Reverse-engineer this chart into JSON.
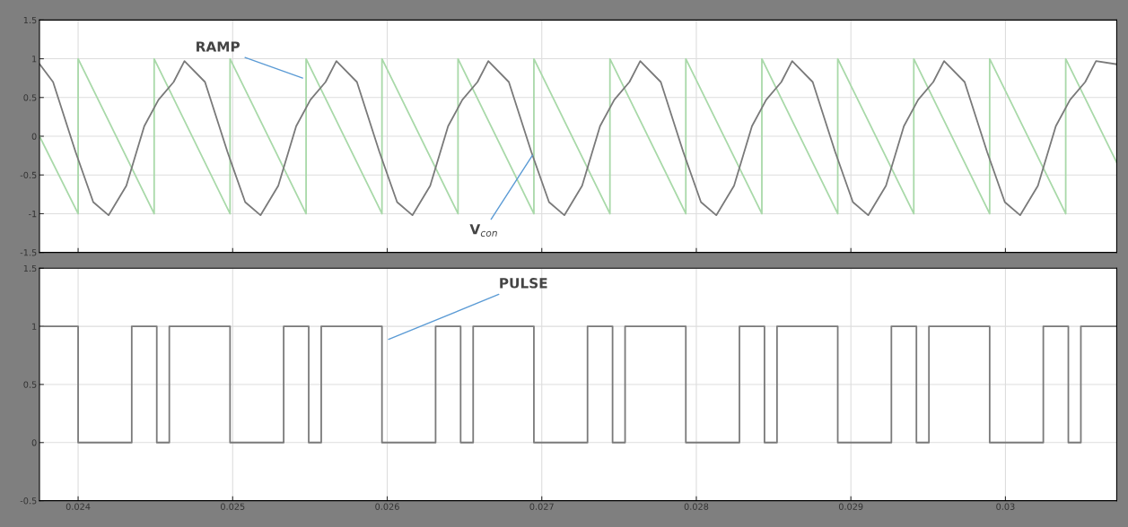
{
  "chart_data": [
    {
      "type": "line",
      "xlim": [
        0.02375,
        0.03072
      ],
      "ylim": [
        -1.5,
        1.5
      ],
      "xticks": [
        0.024,
        0.025,
        0.026,
        0.027,
        0.028,
        0.029,
        0.03
      ],
      "yticks": [
        -1.5,
        -1,
        -0.5,
        0,
        0.5,
        1,
        1.5
      ],
      "grid": true,
      "tick_labels": "y",
      "marker": "none",
      "line_style": "solid",
      "series": [
        {
          "color": "#a9d9a9",
          "x": [
            0.02375,
            0.024,
            0.024,
            0.024492,
            0.024492,
            0.024983,
            0.024983,
            0.025475,
            0.025475,
            0.025966,
            0.025966,
            0.026458,
            0.026458,
            0.026949,
            0.026949,
            0.027441,
            0.027441,
            0.027932,
            0.027932,
            0.028424,
            0.028424,
            0.028915,
            0.028915,
            0.029407,
            0.029407,
            0.029898,
            0.029898,
            0.03039,
            0.03039,
            0.03072
          ],
          "values": [
            0,
            -1,
            1,
            -1,
            1,
            -1,
            1,
            -1,
            1,
            -1,
            1,
            -1,
            1,
            -1,
            1,
            -1,
            1,
            -1,
            1,
            -1,
            1,
            -1,
            1,
            -1,
            1,
            -1,
            1,
            -1,
            1,
            -0.34
          ]
        },
        {
          "color": "#7a7a7a",
          "x": [
            0.023751,
            0.023838,
            0.023983,
            0.024098,
            0.024197,
            0.024312,
            0.024428,
            0.02452,
            0.024618,
            0.024688,
            0.024821,
            0.024966,
            0.025081,
            0.02518,
            0.025295,
            0.025411,
            0.025503,
            0.025601,
            0.025671,
            0.025804,
            0.025949,
            0.026064,
            0.026163,
            0.026278,
            0.026394,
            0.026486,
            0.026584,
            0.026654,
            0.026787,
            0.026932,
            0.027047,
            0.027146,
            0.027261,
            0.027377,
            0.027469,
            0.027567,
            0.027637,
            0.02777,
            0.027915,
            0.02803,
            0.028129,
            0.028244,
            0.02836,
            0.028452,
            0.02855,
            0.02862,
            0.028753,
            0.028898,
            0.029013,
            0.029112,
            0.029227,
            0.029343,
            0.029435,
            0.029533,
            0.029603,
            0.029736,
            0.029881,
            0.029996,
            0.030095,
            0.03021,
            0.030326,
            0.030418,
            0.030516,
            0.030586,
            0.030717
          ],
          "values": [
            0.93,
            0.7,
            -0.2,
            -0.85,
            -1.02,
            -0.64,
            0.13,
            0.47,
            0.7,
            0.97,
            0.7,
            -0.2,
            -0.85,
            -1.02,
            -0.64,
            0.13,
            0.47,
            0.7,
            0.97,
            0.7,
            -0.2,
            -0.85,
            -1.02,
            -0.64,
            0.13,
            0.47,
            0.7,
            0.97,
            0.7,
            -0.2,
            -0.85,
            -1.02,
            -0.64,
            0.13,
            0.47,
            0.7,
            0.97,
            0.7,
            -0.2,
            -0.85,
            -1.02,
            -0.64,
            0.13,
            0.47,
            0.7,
            0.97,
            0.7,
            -0.2,
            -0.85,
            -1.02,
            -0.64,
            0.13,
            0.47,
            0.7,
            0.97,
            0.7,
            -0.2,
            -0.85,
            -1.02,
            -0.64,
            0.13,
            0.47,
            0.7,
            0.97,
            0.93
          ]
        }
      ],
      "annotations": [
        {
          "text": "RAMP",
          "x": 0.025468,
          "y": 0.74
        },
        {
          "text": "V$_{con}$",
          "x": 0.026948,
          "y": -0.22
        }
      ]
    },
    {
      "type": "step",
      "xlim": [
        0.02375,
        0.03072
      ],
      "ylim": [
        -0.5,
        1.5
      ],
      "xticks": [
        0.024,
        0.025,
        0.026,
        0.027,
        0.028,
        0.029,
        0.03
      ],
      "yticks": [
        -0.5,
        0,
        0.5,
        1,
        1.5
      ],
      "grid": true,
      "marker": "none",
      "line_style": "solid",
      "series": [
        {
          "color": "#7a7a7a",
          "x": [
            0.02375,
            0.024,
            0.024347,
            0.024509,
            0.02459,
            0.024983,
            0.02533,
            0.025492,
            0.025573,
            0.025966,
            0.026313,
            0.026475,
            0.026556,
            0.026949,
            0.027296,
            0.027458,
            0.027539,
            0.027932,
            0.028279,
            0.028441,
            0.028522,
            0.028915,
            0.029262,
            0.029424,
            0.029505,
            0.029898,
            0.030245,
            0.030407,
            0.030488,
            0.03072
          ],
          "values": [
            1,
            0,
            1,
            0,
            1,
            0,
            1,
            0,
            1,
            0,
            1,
            0,
            1,
            0,
            1,
            0,
            1,
            0,
            1,
            0,
            1,
            0,
            1,
            0,
            1,
            0,
            1,
            0,
            1,
            1
          ]
        }
      ],
      "annotations": [
        {
          "text": "PULSE",
          "x": 0.025994,
          "y": 0.88
        }
      ]
    }
  ]
}
